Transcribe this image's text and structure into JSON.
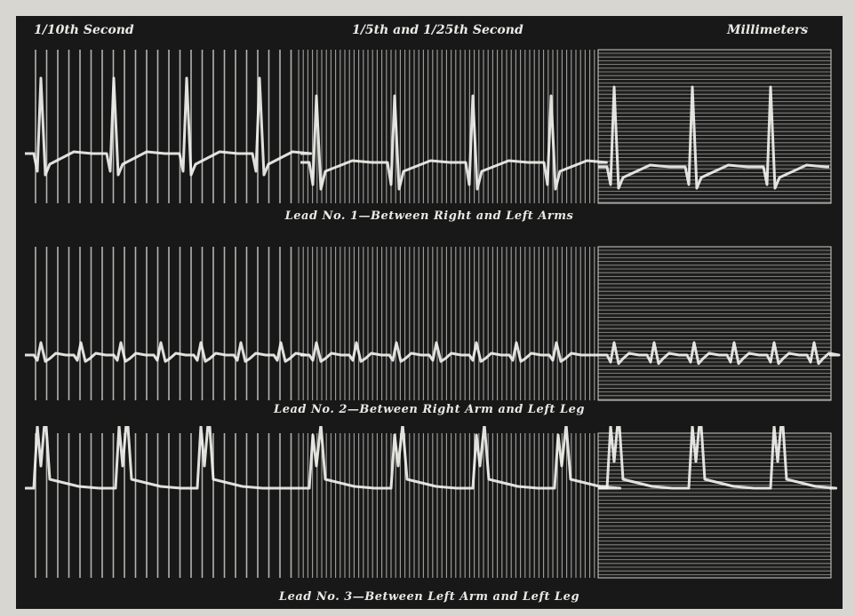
{
  "timing_labels": {
    "left": "1/10th Second",
    "middle": "1/5th and 1/25th Second",
    "right": "Millimeters"
  },
  "leads": [
    {
      "caption": "Lead No. 1—Between Right and Left Arms"
    },
    {
      "caption": "Lead No. 2—Between Right Arm and Left Leg"
    },
    {
      "caption": "Lead No. 3—Between Left Arm and Left Leg"
    }
  ],
  "colors": {
    "background": "#181818",
    "trace": "#f2f2ee",
    "grid": "#cfcfcb"
  }
}
